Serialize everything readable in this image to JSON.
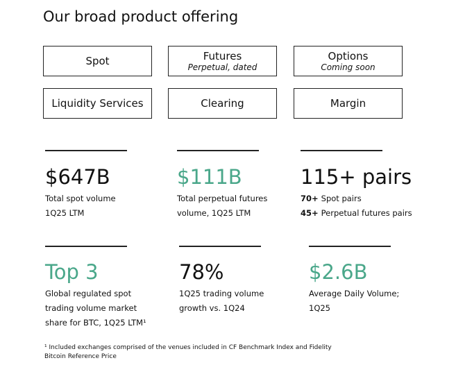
{
  "title": "Our broad product offering",
  "products": [
    {
      "name": "Spot"
    },
    {
      "name": "Futures",
      "note": "Perpetual, dated"
    },
    {
      "name": "Options",
      "note": "Coming soon"
    },
    {
      "name": "Liquidity Services"
    },
    {
      "name": "Clearing"
    },
    {
      "name": "Margin"
    }
  ],
  "stats": [
    {
      "value": "$647B",
      "lines": [
        "Total spot volume",
        "1Q25 LTM"
      ]
    },
    {
      "value": "$111B",
      "lines": [
        "Total perpetual futures",
        "volume, 1Q25 LTM"
      ]
    },
    {
      "value": "115+ pairs",
      "pairs": [
        {
          "count": "70+",
          "label": "Spot pairs"
        },
        {
          "count": "45+",
          "label": "Perpetual futures pairs"
        }
      ]
    },
    {
      "value": "Top 3",
      "lines": [
        "Global regulated spot",
        "trading volume market",
        "share for BTC, 1Q25 LTM¹"
      ]
    },
    {
      "value": "78%",
      "lines": [
        "1Q25 trading volume",
        "growth vs. 1Q24"
      ]
    },
    {
      "value": "$2.6B",
      "lines": [
        "Average Daily Volume;",
        "1Q25"
      ]
    }
  ],
  "footnote": [
    "¹ Included exchanges comprised of the venues included in CF Benchmark Index and Fidelity",
    "Bitcoin Reference Price"
  ]
}
